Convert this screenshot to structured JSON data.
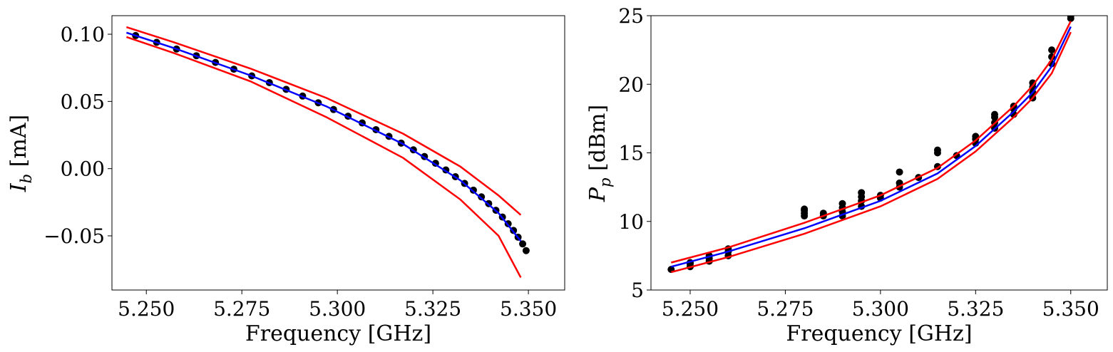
{
  "chart_data": [
    {
      "type": "scatter",
      "xlabel": "Frequency [GHz]",
      "ylabel": {
        "symbol": "I",
        "subscript": "b",
        "unit": "[mA]"
      },
      "xlim": [
        5.241,
        5.3595
      ],
      "ylim": [
        -0.0903,
        0.1138
      ],
      "xticks": [
        {
          "value": 5.25,
          "label": "5.250"
        },
        {
          "value": 5.275,
          "label": "5.275"
        },
        {
          "value": 5.3,
          "label": "5.300"
        },
        {
          "value": 5.325,
          "label": "5.325"
        },
        {
          "value": 5.35,
          "label": "5.350"
        }
      ],
      "yticks": [
        {
          "value": -0.05,
          "label": "−0.05"
        },
        {
          "value": 0,
          "label": "0.00"
        },
        {
          "value": 0.05,
          "label": "0.05"
        },
        {
          "value": 0.1,
          "label": "0.10"
        }
      ],
      "series": [
        {
          "kind": "points",
          "color": "#000000",
          "x": [
            5.2472,
            5.2527,
            5.2579,
            5.2631,
            5.2681,
            5.2729,
            5.2776,
            5.2822,
            5.2866,
            5.2909,
            5.295,
            5.299,
            5.3028,
            5.3065,
            5.3101,
            5.3135,
            5.3167,
            5.3199,
            5.3228,
            5.3257,
            5.3284,
            5.3309,
            5.3333,
            5.3356,
            5.3377,
            5.3396,
            5.3415,
            5.3432,
            5.3447,
            5.3461,
            5.3473,
            5.3485,
            5.3494
          ],
          "values": [
            0.099,
            0.094,
            0.089,
            0.084,
            0.079,
            0.074,
            0.069,
            0.064,
            0.059,
            0.054,
            0.049,
            0.044,
            0.039,
            0.034,
            0.029,
            0.024,
            0.019,
            0.014,
            0.009,
            0.004,
            -0.001,
            -0.006,
            -0.011,
            -0.016,
            -0.021,
            -0.026,
            -0.031,
            -0.036,
            -0.041,
            -0.046,
            -0.051,
            -0.056,
            -0.061
          ]
        },
        {
          "kind": "line",
          "color": "#ff0000",
          "x": [
            5.2448,
            5.2572,
            5.2772,
            5.2972,
            5.3172,
            5.3322,
            5.3422,
            5.348
          ],
          "values": [
            0.1053,
            0.094,
            0.0745,
            0.0525,
            0.026,
            0.0015,
            -0.02,
            -0.0345
          ]
        },
        {
          "kind": "line",
          "color": "#ff0000",
          "x": [
            5.2448,
            5.2572,
            5.2772,
            5.2972,
            5.3172,
            5.3322,
            5.3422,
            5.348
          ],
          "values": [
            0.0979,
            0.086,
            0.065,
            0.0382,
            0.008,
            -0.023,
            -0.05,
            -0.081
          ]
        },
        {
          "kind": "line",
          "color": "#0000ff",
          "x": [
            5.2448,
            5.2572,
            5.2772,
            5.2972,
            5.3172,
            5.3322,
            5.3422,
            5.348
          ],
          "values": [
            0.1012,
            0.0897,
            0.0694,
            0.0462,
            0.0183,
            -0.0087,
            -0.0331,
            -0.0539
          ]
        }
      ]
    },
    {
      "type": "scatter",
      "xlabel": "Frequency [GHz]",
      "ylabel": {
        "symbol": "P",
        "subscript": "p",
        "unit": "[dBm]"
      },
      "xlim": [
        5.2397,
        5.3596
      ],
      "ylim": [
        5,
        25
      ],
      "xticks": [
        {
          "value": 5.25,
          "label": "5.250"
        },
        {
          "value": 5.275,
          "label": "5.275"
        },
        {
          "value": 5.3,
          "label": "5.300"
        },
        {
          "value": 5.325,
          "label": "5.325"
        },
        {
          "value": 5.35,
          "label": "5.350"
        }
      ],
      "yticks": [
        5,
        10,
        15,
        20,
        25
      ],
      "series": [
        {
          "kind": "points",
          "color": "#000000",
          "x": [
            5.245,
            5.25,
            5.25,
            5.25,
            5.255,
            5.255,
            5.255,
            5.26,
            5.26,
            5.26,
            5.28,
            5.28,
            5.28,
            5.28,
            5.285,
            5.285,
            5.29,
            5.29,
            5.29,
            5.29,
            5.295,
            5.295,
            5.295,
            5.295,
            5.3,
            5.3,
            5.305,
            5.305,
            5.305,
            5.31,
            5.315,
            5.315,
            5.315,
            5.32,
            5.325,
            5.325,
            5.325,
            5.33,
            5.33,
            5.33,
            5.33,
            5.335,
            5.335,
            5.335,
            5.34,
            5.34,
            5.34,
            5.34,
            5.345,
            5.345,
            5.345,
            5.35,
            5.35
          ],
          "values": [
            6.5,
            6.7,
            6.9,
            7.0,
            7.1,
            7.3,
            7.5,
            7.5,
            7.8,
            8.0,
            10.4,
            10.6,
            10.8,
            10.9,
            10.4,
            10.6,
            10.4,
            10.7,
            11.0,
            11.3,
            11.1,
            11.5,
            11.8,
            12.1,
            11.7,
            11.9,
            12.5,
            12.8,
            13.6,
            13.2,
            14.0,
            15.0,
            15.2,
            14.8,
            15.7,
            16.0,
            16.2,
            16.8,
            17.2,
            17.6,
            17.8,
            17.8,
            18.2,
            18.4,
            19.0,
            19.4,
            19.8,
            20.1,
            21.5,
            22.0,
            22.5,
            24.8,
            25.0
          ]
        },
        {
          "kind": "line",
          "color": "#ff0000",
          "x": [
            5.245,
            5.26,
            5.28,
            5.3,
            5.315,
            5.325,
            5.335,
            5.34,
            5.345,
            5.35
          ],
          "values": [
            7.0,
            8.1,
            9.9,
            11.9,
            13.9,
            15.9,
            18.4,
            19.9,
            21.8,
            24.6
          ]
        },
        {
          "kind": "line",
          "color": "#ff0000",
          "x": [
            5.245,
            5.26,
            5.28,
            5.3,
            5.315,
            5.325,
            5.335,
            5.34,
            5.345,
            5.35
          ],
          "values": [
            6.3,
            7.4,
            9.1,
            11.1,
            13.1,
            15.1,
            17.6,
            19.0,
            20.8,
            23.8
          ]
        },
        {
          "kind": "line",
          "color": "#0000ff",
          "x": [
            5.245,
            5.26,
            5.28,
            5.3,
            5.315,
            5.325,
            5.335,
            5.34,
            5.345,
            5.35
          ],
          "values": [
            6.7,
            7.8,
            9.5,
            11.5,
            13.5,
            15.5,
            18.0,
            19.4,
            21.3,
            24.2
          ]
        }
      ]
    }
  ]
}
